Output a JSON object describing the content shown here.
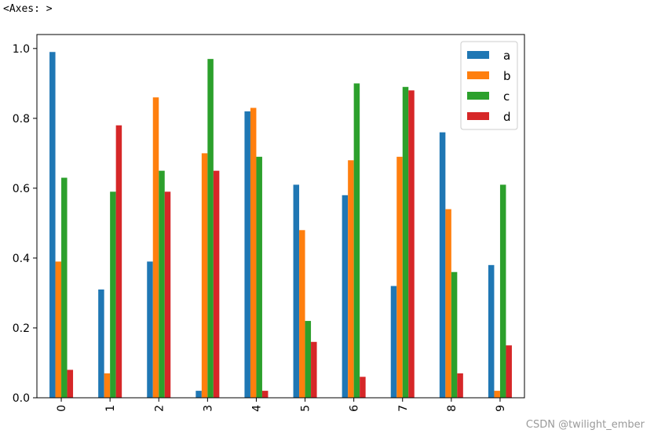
{
  "output_label": "<Axes: >",
  "watermark": "CSDN @twilight_ember",
  "chart_data": {
    "type": "bar",
    "categories": [
      "0",
      "1",
      "2",
      "3",
      "4",
      "5",
      "6",
      "7",
      "8",
      "9"
    ],
    "series": [
      {
        "name": "a",
        "color": "#1f77b4",
        "values": [
          0.99,
          0.31,
          0.39,
          0.02,
          0.82,
          0.61,
          0.58,
          0.32,
          0.76,
          0.38
        ]
      },
      {
        "name": "b",
        "color": "#ff7f0e",
        "values": [
          0.39,
          0.07,
          0.86,
          0.7,
          0.83,
          0.48,
          0.68,
          0.69,
          0.54,
          0.02
        ]
      },
      {
        "name": "c",
        "color": "#2ca02c",
        "values": [
          0.63,
          0.59,
          0.65,
          0.97,
          0.69,
          0.22,
          0.9,
          0.89,
          0.36,
          0.61
        ]
      },
      {
        "name": "d",
        "color": "#d62728",
        "values": [
          0.08,
          0.78,
          0.59,
          0.65,
          0.02,
          0.16,
          0.06,
          0.88,
          0.07,
          0.15
        ]
      }
    ],
    "ylim": [
      0,
      1.04
    ],
    "yticks": [
      "0.0",
      "0.2",
      "0.4",
      "0.6",
      "0.8",
      "1.0"
    ],
    "ytick_values": [
      0.0,
      0.2,
      0.4,
      0.6,
      0.8,
      1.0
    ],
    "legend_position": "upper-right",
    "grid": false
  }
}
